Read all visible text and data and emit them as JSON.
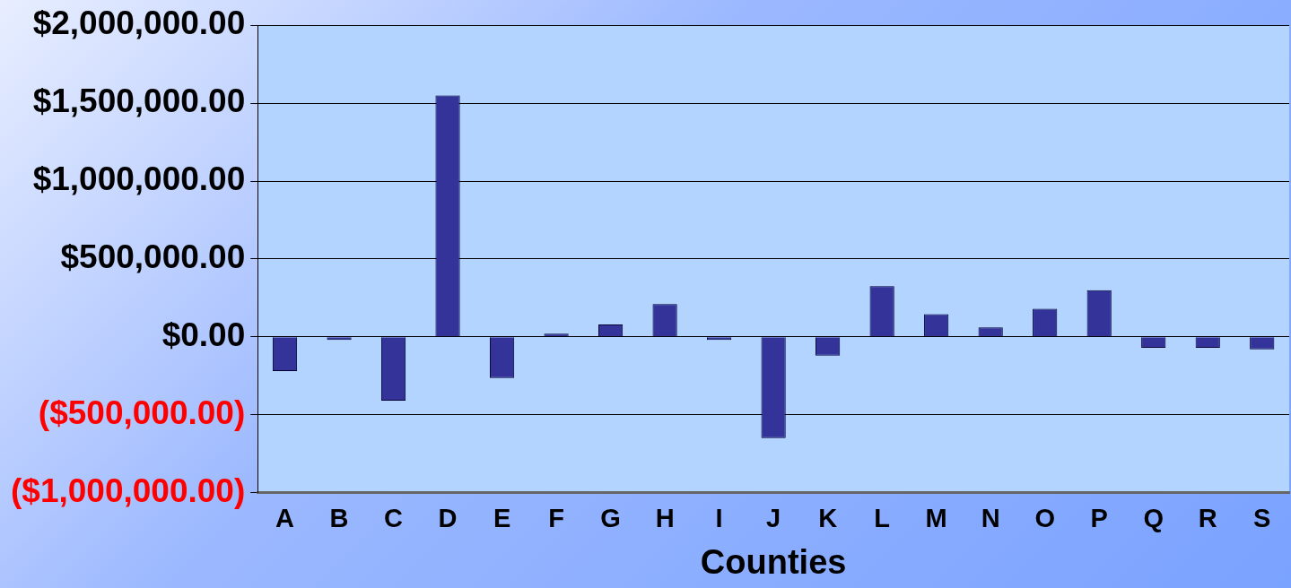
{
  "chart_data": {
    "type": "bar",
    "xlabel": "Counties",
    "categories": [
      "A",
      "B",
      "C",
      "D",
      "E",
      "F",
      "G",
      "H",
      "I",
      "J",
      "K",
      "L",
      "M",
      "N",
      "O",
      "P",
      "Q",
      "R",
      "S"
    ],
    "values": [
      -220000,
      -20000,
      -410000,
      1550000,
      -265000,
      20000,
      80000,
      210000,
      -20000,
      -650000,
      -120000,
      325000,
      145000,
      60000,
      180000,
      300000,
      -70000,
      -70000,
      -80000
    ],
    "color": "#333399",
    "ylim": [
      -1000000,
      2000000
    ],
    "yticks": [
      {
        "value": -1000000,
        "label": "($1,000,000.00)"
      },
      {
        "value": -500000,
        "label": "($500,000.00)"
      },
      {
        "value": 0,
        "label": "$0.00"
      },
      {
        "value": 500000,
        "label": "$500,000.00"
      },
      {
        "value": 1000000,
        "label": "$1,000,000.00"
      },
      {
        "value": 1500000,
        "label": "$1,500,000.00"
      },
      {
        "value": 2000000,
        "label": "$2,000,000.00"
      }
    ],
    "grid": "y",
    "legend": false
  }
}
